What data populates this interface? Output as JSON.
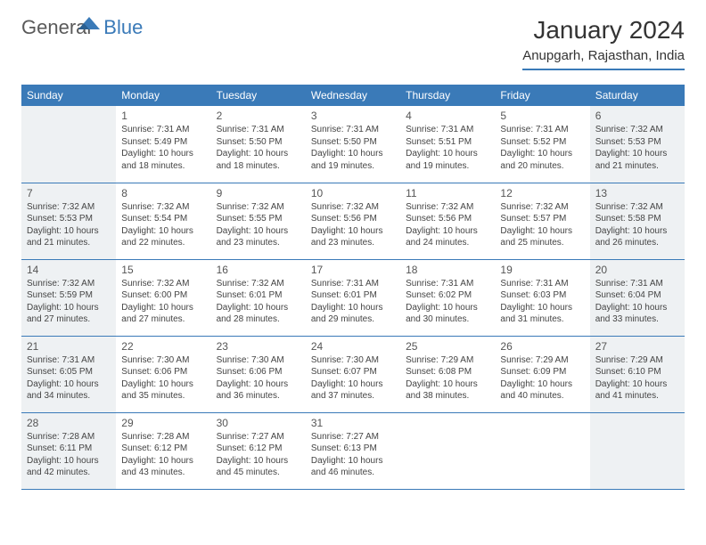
{
  "brand": {
    "part1": "General",
    "part2": "Blue"
  },
  "title": "January 2024",
  "location": "Anupgarh, Rajasthan, India",
  "colors": {
    "accent": "#3a7ab8",
    "header_bg": "#3a7ab8",
    "header_text": "#ffffff",
    "shaded_bg": "#eef1f3",
    "text": "#444444",
    "daynum": "#555555",
    "page_bg": "#ffffff"
  },
  "weekdays": [
    "Sunday",
    "Monday",
    "Tuesday",
    "Wednesday",
    "Thursday",
    "Friday",
    "Saturday"
  ],
  "calendar": {
    "type": "table",
    "columns": 7,
    "shaded_cols": [
      0,
      6
    ],
    "rows": [
      [
        null,
        {
          "n": "1",
          "sr": "Sunrise: 7:31 AM",
          "ss": "Sunset: 5:49 PM",
          "d1": "Daylight: 10 hours",
          "d2": "and 18 minutes."
        },
        {
          "n": "2",
          "sr": "Sunrise: 7:31 AM",
          "ss": "Sunset: 5:50 PM",
          "d1": "Daylight: 10 hours",
          "d2": "and 18 minutes."
        },
        {
          "n": "3",
          "sr": "Sunrise: 7:31 AM",
          "ss": "Sunset: 5:50 PM",
          "d1": "Daylight: 10 hours",
          "d2": "and 19 minutes."
        },
        {
          "n": "4",
          "sr": "Sunrise: 7:31 AM",
          "ss": "Sunset: 5:51 PM",
          "d1": "Daylight: 10 hours",
          "d2": "and 19 minutes."
        },
        {
          "n": "5",
          "sr": "Sunrise: 7:31 AM",
          "ss": "Sunset: 5:52 PM",
          "d1": "Daylight: 10 hours",
          "d2": "and 20 minutes."
        },
        {
          "n": "6",
          "sr": "Sunrise: 7:32 AM",
          "ss": "Sunset: 5:53 PM",
          "d1": "Daylight: 10 hours",
          "d2": "and 21 minutes."
        }
      ],
      [
        {
          "n": "7",
          "sr": "Sunrise: 7:32 AM",
          "ss": "Sunset: 5:53 PM",
          "d1": "Daylight: 10 hours",
          "d2": "and 21 minutes."
        },
        {
          "n": "8",
          "sr": "Sunrise: 7:32 AM",
          "ss": "Sunset: 5:54 PM",
          "d1": "Daylight: 10 hours",
          "d2": "and 22 minutes."
        },
        {
          "n": "9",
          "sr": "Sunrise: 7:32 AM",
          "ss": "Sunset: 5:55 PM",
          "d1": "Daylight: 10 hours",
          "d2": "and 23 minutes."
        },
        {
          "n": "10",
          "sr": "Sunrise: 7:32 AM",
          "ss": "Sunset: 5:56 PM",
          "d1": "Daylight: 10 hours",
          "d2": "and 23 minutes."
        },
        {
          "n": "11",
          "sr": "Sunrise: 7:32 AM",
          "ss": "Sunset: 5:56 PM",
          "d1": "Daylight: 10 hours",
          "d2": "and 24 minutes."
        },
        {
          "n": "12",
          "sr": "Sunrise: 7:32 AM",
          "ss": "Sunset: 5:57 PM",
          "d1": "Daylight: 10 hours",
          "d2": "and 25 minutes."
        },
        {
          "n": "13",
          "sr": "Sunrise: 7:32 AM",
          "ss": "Sunset: 5:58 PM",
          "d1": "Daylight: 10 hours",
          "d2": "and 26 minutes."
        }
      ],
      [
        {
          "n": "14",
          "sr": "Sunrise: 7:32 AM",
          "ss": "Sunset: 5:59 PM",
          "d1": "Daylight: 10 hours",
          "d2": "and 27 minutes."
        },
        {
          "n": "15",
          "sr": "Sunrise: 7:32 AM",
          "ss": "Sunset: 6:00 PM",
          "d1": "Daylight: 10 hours",
          "d2": "and 27 minutes."
        },
        {
          "n": "16",
          "sr": "Sunrise: 7:32 AM",
          "ss": "Sunset: 6:01 PM",
          "d1": "Daylight: 10 hours",
          "d2": "and 28 minutes."
        },
        {
          "n": "17",
          "sr": "Sunrise: 7:31 AM",
          "ss": "Sunset: 6:01 PM",
          "d1": "Daylight: 10 hours",
          "d2": "and 29 minutes."
        },
        {
          "n": "18",
          "sr": "Sunrise: 7:31 AM",
          "ss": "Sunset: 6:02 PM",
          "d1": "Daylight: 10 hours",
          "d2": "and 30 minutes."
        },
        {
          "n": "19",
          "sr": "Sunrise: 7:31 AM",
          "ss": "Sunset: 6:03 PM",
          "d1": "Daylight: 10 hours",
          "d2": "and 31 minutes."
        },
        {
          "n": "20",
          "sr": "Sunrise: 7:31 AM",
          "ss": "Sunset: 6:04 PM",
          "d1": "Daylight: 10 hours",
          "d2": "and 33 minutes."
        }
      ],
      [
        {
          "n": "21",
          "sr": "Sunrise: 7:31 AM",
          "ss": "Sunset: 6:05 PM",
          "d1": "Daylight: 10 hours",
          "d2": "and 34 minutes."
        },
        {
          "n": "22",
          "sr": "Sunrise: 7:30 AM",
          "ss": "Sunset: 6:06 PM",
          "d1": "Daylight: 10 hours",
          "d2": "and 35 minutes."
        },
        {
          "n": "23",
          "sr": "Sunrise: 7:30 AM",
          "ss": "Sunset: 6:06 PM",
          "d1": "Daylight: 10 hours",
          "d2": "and 36 minutes."
        },
        {
          "n": "24",
          "sr": "Sunrise: 7:30 AM",
          "ss": "Sunset: 6:07 PM",
          "d1": "Daylight: 10 hours",
          "d2": "and 37 minutes."
        },
        {
          "n": "25",
          "sr": "Sunrise: 7:29 AM",
          "ss": "Sunset: 6:08 PM",
          "d1": "Daylight: 10 hours",
          "d2": "and 38 minutes."
        },
        {
          "n": "26",
          "sr": "Sunrise: 7:29 AM",
          "ss": "Sunset: 6:09 PM",
          "d1": "Daylight: 10 hours",
          "d2": "and 40 minutes."
        },
        {
          "n": "27",
          "sr": "Sunrise: 7:29 AM",
          "ss": "Sunset: 6:10 PM",
          "d1": "Daylight: 10 hours",
          "d2": "and 41 minutes."
        }
      ],
      [
        {
          "n": "28",
          "sr": "Sunrise: 7:28 AM",
          "ss": "Sunset: 6:11 PM",
          "d1": "Daylight: 10 hours",
          "d2": "and 42 minutes."
        },
        {
          "n": "29",
          "sr": "Sunrise: 7:28 AM",
          "ss": "Sunset: 6:12 PM",
          "d1": "Daylight: 10 hours",
          "d2": "and 43 minutes."
        },
        {
          "n": "30",
          "sr": "Sunrise: 7:27 AM",
          "ss": "Sunset: 6:12 PM",
          "d1": "Daylight: 10 hours",
          "d2": "and 45 minutes."
        },
        {
          "n": "31",
          "sr": "Sunrise: 7:27 AM",
          "ss": "Sunset: 6:13 PM",
          "d1": "Daylight: 10 hours",
          "d2": "and 46 minutes."
        },
        null,
        null,
        null
      ]
    ]
  }
}
